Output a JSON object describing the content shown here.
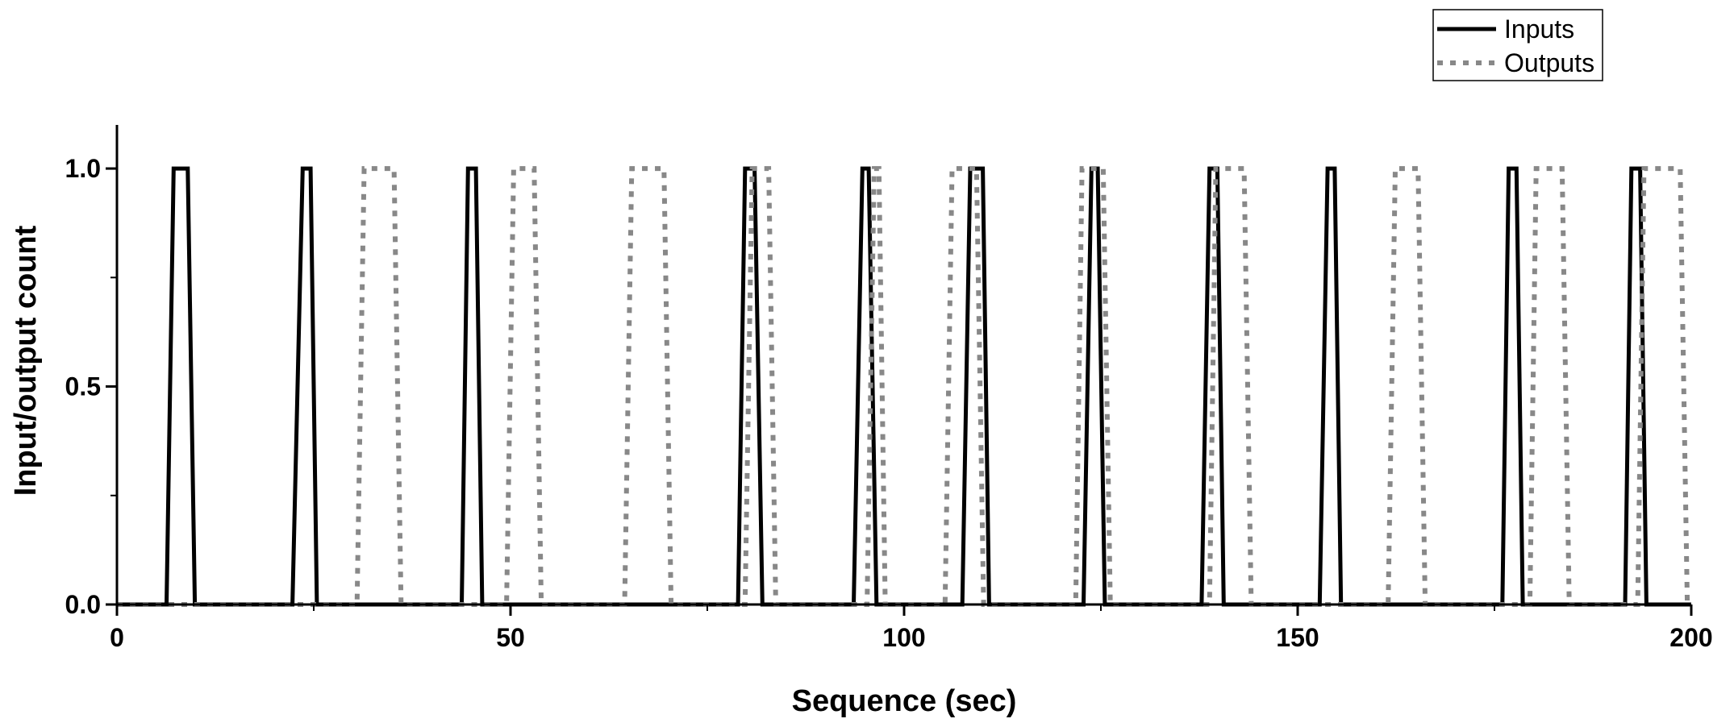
{
  "chart_data": {
    "type": "line",
    "title": "",
    "xlabel": "Sequence (sec)",
    "ylabel": "Input/output count",
    "xlim": [
      0,
      200
    ],
    "ylim": [
      0,
      1.1
    ],
    "x_major_ticks": [
      0,
      50,
      100,
      150,
      200
    ],
    "x_minor_ticks": [
      25,
      75,
      125,
      175
    ],
    "y_major_ticks": [
      0.0,
      0.5,
      1.0
    ],
    "y_minor_ticks": [
      0.25,
      0.75
    ],
    "x_tick_labels": [
      "0",
      "50",
      "100",
      "150",
      "200"
    ],
    "y_tick_labels": [
      "0.0",
      "0.5",
      "1.0"
    ],
    "grid": false,
    "legend_position": "top-right",
    "series": [
      {
        "name": "Inputs",
        "color": "#000000",
        "style": "solid",
        "x": [
          0,
          6.3,
          7.2,
          9.0,
          9.9,
          22.3,
          23.6,
          24.6,
          25.4,
          43.8,
          44.6,
          45.6,
          46.4,
          78.9,
          79.8,
          81.0,
          82.0,
          93.6,
          94.7,
          95.5,
          96.5,
          107.4,
          108.4,
          110.0,
          110.8,
          122.8,
          123.8,
          124.6,
          125.5,
          137.8,
          138.8,
          139.8,
          140.6,
          152.8,
          153.8,
          154.7,
          155.5,
          176.0,
          176.8,
          177.8,
          178.6,
          191.6,
          192.4,
          193.5,
          194.3,
          200
        ],
        "y": [
          0,
          0,
          1,
          1,
          0,
          0,
          1,
          1,
          0,
          0,
          1,
          1,
          0,
          0,
          1,
          1,
          0,
          0,
          1,
          1,
          0,
          0,
          1,
          1,
          0,
          0,
          1,
          1,
          0,
          0,
          1,
          1,
          0,
          0,
          1,
          1,
          0,
          0,
          1,
          1,
          0,
          0,
          1,
          1,
          0,
          0
        ]
      },
      {
        "name": "Outputs",
        "color": "#888888",
        "style": "dotted",
        "x": [
          0,
          30.5,
          31.4,
          35.2,
          36.1,
          49.5,
          50.4,
          53.0,
          53.9,
          64.5,
          65.4,
          69.5,
          70.4,
          79.8,
          80.7,
          82.8,
          83.7,
          95.3,
          96.2,
          96.8,
          97.6,
          105.2,
          106.1,
          109.2,
          110.1,
          121.8,
          122.6,
          125.3,
          126.2,
          138.8,
          139.6,
          143.2,
          144.1,
          161.5,
          162.4,
          165.3,
          166.2,
          179.5,
          180.3,
          183.6,
          184.5,
          193.2,
          194.0,
          198.6,
          199.5,
          200
        ],
        "y": [
          0,
          0,
          1,
          1,
          0,
          0,
          1,
          1,
          0,
          0,
          1,
          1,
          0,
          0,
          1,
          1,
          0,
          0,
          1,
          1,
          0,
          0,
          1,
          1,
          0,
          0,
          1,
          1,
          0,
          0,
          1,
          1,
          0,
          0,
          1,
          1,
          0,
          0,
          1,
          1,
          0,
          0,
          1,
          1,
          0,
          0
        ]
      }
    ]
  }
}
